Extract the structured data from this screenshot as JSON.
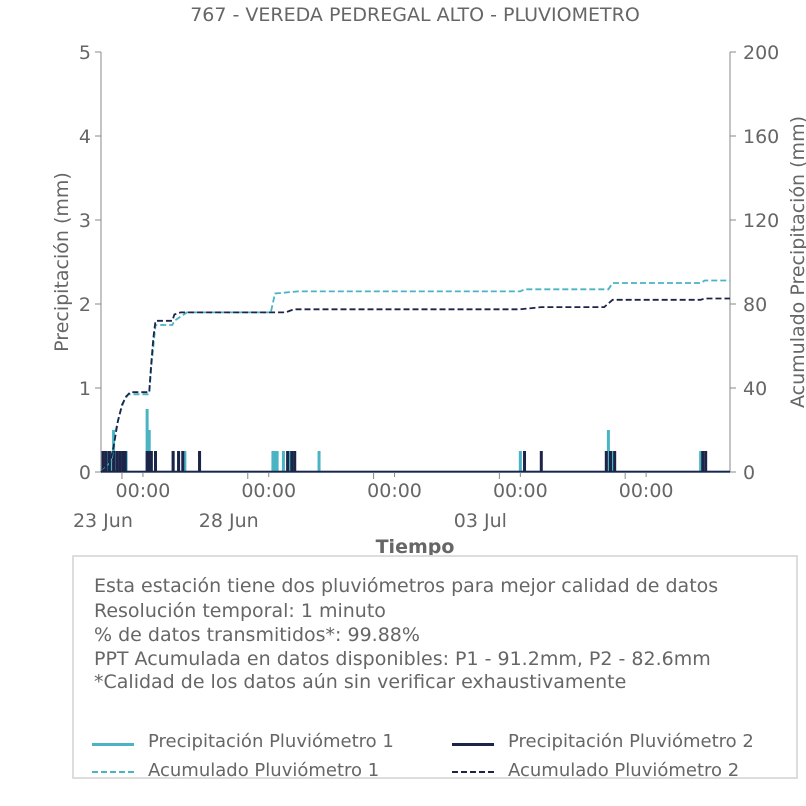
{
  "chart_data": {
    "type": "line",
    "title": "767 - VEREDA PEDREGAL ALTO - PLUVIOMETRO",
    "xlabel": "Tiempo",
    "ylabel": "Precipitación (mm)",
    "y2label": "Acumulado Precipitación (mm)",
    "ylim": [
      0,
      5
    ],
    "y2lim": [
      0,
      200
    ],
    "yticks": [
      "0",
      "1",
      "2",
      "3",
      "4",
      "5"
    ],
    "y2ticks": [
      "0",
      "40",
      "80",
      "120",
      "160",
      "200"
    ],
    "xlim": [
      0,
      15.0
    ],
    "xticks": [
      {
        "x": 1.0,
        "line1": "00:00",
        "line2": "23 Jun"
      },
      {
        "x": 4.0,
        "line1": "00:00",
        "line2": "28 Jun"
      },
      {
        "x": 7.0,
        "line1": "00:00",
        "line2": ""
      },
      {
        "x": 10.0,
        "line1": "00:00",
        "line2": "03 Jul"
      },
      {
        "x": 13.0,
        "line1": "00:00",
        "line2": ""
      }
    ],
    "series": [
      {
        "name": "Precipitación Pluviómetro 1",
        "color": "#4ab3c4",
        "style": "solid",
        "axis": "left",
        "bars": [
          [
            0.05,
            0.25
          ],
          [
            0.15,
            0.25
          ],
          [
            0.25,
            0.25
          ],
          [
            0.3,
            0.5
          ],
          [
            0.35,
            0.25
          ],
          [
            0.45,
            0.25
          ],
          [
            0.55,
            0.25
          ],
          [
            0.6,
            0.25
          ],
          [
            1.1,
            0.75
          ],
          [
            1.15,
            0.5
          ],
          [
            1.2,
            0.25
          ],
          [
            1.3,
            0.25
          ],
          [
            1.72,
            0.25
          ],
          [
            1.85,
            0.25
          ],
          [
            2.0,
            0.25
          ],
          [
            2.35,
            0.25
          ],
          [
            4.1,
            0.25
          ],
          [
            4.15,
            0.25
          ],
          [
            4.2,
            0.25
          ],
          [
            4.35,
            0.25
          ],
          [
            4.5,
            0.25
          ],
          [
            4.6,
            0.25
          ],
          [
            5.2,
            0.25
          ],
          [
            10.0,
            0.25
          ],
          [
            12.1,
            0.5
          ],
          [
            12.2,
            0.25
          ],
          [
            14.3,
            0.25
          ]
        ],
        "line_color": "#4ab3c4"
      },
      {
        "name": "Precipitación Pluviómetro 2",
        "color": "#1c2448",
        "style": "solid",
        "axis": "left",
        "bars": [
          [
            0.05,
            0.25
          ],
          [
            0.12,
            0.25
          ],
          [
            0.2,
            0.25
          ],
          [
            0.3,
            0.25
          ],
          [
            0.38,
            0.25
          ],
          [
            0.45,
            0.25
          ],
          [
            0.52,
            0.25
          ],
          [
            0.58,
            0.25
          ],
          [
            1.1,
            0.25
          ],
          [
            1.15,
            0.25
          ],
          [
            1.2,
            0.25
          ],
          [
            1.3,
            0.25
          ],
          [
            1.72,
            0.25
          ],
          [
            1.85,
            0.25
          ],
          [
            1.95,
            0.25
          ],
          [
            2.35,
            0.25
          ],
          [
            4.45,
            0.25
          ],
          [
            4.55,
            0.25
          ],
          [
            4.62,
            0.25
          ],
          [
            10.1,
            0.25
          ],
          [
            10.5,
            0.25
          ],
          [
            12.05,
            0.25
          ],
          [
            12.15,
            0.25
          ],
          [
            12.25,
            0.25
          ],
          [
            14.35,
            0.25
          ],
          [
            14.42,
            0.25
          ]
        ]
      },
      {
        "name": "Acumulado Pluviómetro 1",
        "color": "#4ab3c4",
        "style": "dashed",
        "axis": "right",
        "points": [
          [
            0.0,
            0
          ],
          [
            0.25,
            5
          ],
          [
            0.35,
            20
          ],
          [
            0.45,
            28
          ],
          [
            0.55,
            34
          ],
          [
            0.65,
            37
          ],
          [
            1.15,
            37
          ],
          [
            1.2,
            50
          ],
          [
            1.25,
            60
          ],
          [
            1.3,
            70
          ],
          [
            1.7,
            70
          ],
          [
            1.75,
            72
          ],
          [
            1.9,
            74
          ],
          [
            2.05,
            76
          ],
          [
            4.05,
            76
          ],
          [
            4.15,
            85
          ],
          [
            4.7,
            86
          ],
          [
            6.0,
            86
          ],
          [
            10.0,
            86
          ],
          [
            10.1,
            87
          ],
          [
            12.1,
            87
          ],
          [
            12.2,
            90
          ],
          [
            14.3,
            90
          ],
          [
            14.4,
            91.2
          ],
          [
            15.0,
            91.2
          ]
        ]
      },
      {
        "name": "Acumulado Pluviómetro 2",
        "color": "#1c2448",
        "style": "dashed",
        "axis": "right",
        "points": [
          [
            0.0,
            0
          ],
          [
            0.2,
            3
          ],
          [
            0.3,
            12
          ],
          [
            0.4,
            24
          ],
          [
            0.5,
            32
          ],
          [
            0.6,
            36
          ],
          [
            0.7,
            38
          ],
          [
            1.15,
            38
          ],
          [
            1.2,
            52
          ],
          [
            1.25,
            64
          ],
          [
            1.3,
            72
          ],
          [
            1.7,
            72
          ],
          [
            1.75,
            75
          ],
          [
            1.9,
            76
          ],
          [
            4.4,
            76
          ],
          [
            4.6,
            77.5
          ],
          [
            10.0,
            77.5
          ],
          [
            10.5,
            78.5
          ],
          [
            12.0,
            78.5
          ],
          [
            12.2,
            82
          ],
          [
            14.3,
            82
          ],
          [
            14.4,
            82.6
          ],
          [
            15.0,
            82.6
          ]
        ]
      }
    ],
    "legend": "bottom"
  },
  "info": {
    "lines": [
      "Esta estación tiene dos pluviómetros para mejor calidad de datos",
      "Resolución temporal: 1 minuto",
      "% de datos transmitidos*: 99.88%",
      "PPT Acumulada en datos disponibles: P1 - 91.2mm, P2 - 82.6mm",
      "*Calidad de los datos aún sin verificar exhaustivamente"
    ]
  },
  "legend_items": [
    {
      "label": "Precipitación Pluviómetro 1",
      "color": "#4ab3c4",
      "style": "solid"
    },
    {
      "label": "Precipitación Pluviómetro 2",
      "color": "#1c2448",
      "style": "solid"
    },
    {
      "label": "Acumulado Pluviómetro 1",
      "color": "#4ab3c4",
      "style": "dashed"
    },
    {
      "label": "Acumulado Pluviómetro 2",
      "color": "#1c2448",
      "style": "dashed"
    }
  ]
}
